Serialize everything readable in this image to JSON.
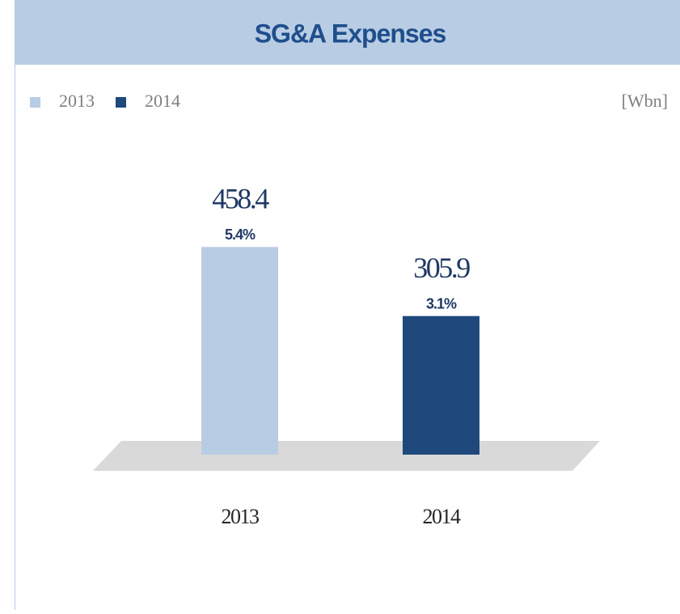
{
  "chart_data": {
    "type": "bar",
    "title": "SG&A Expenses",
    "unit": "[Wbn]",
    "categories": [
      "2013",
      "2014"
    ],
    "values": [
      458.4,
      305.9
    ],
    "colors": [
      "#b8cce4",
      "#1f497d"
    ],
    "ratios": [
      5.4,
      3.1
    ],
    "ratio_labels": [
      "5.4%",
      "3.1%"
    ],
    "ylim": [
      0,
      500
    ]
  }
}
